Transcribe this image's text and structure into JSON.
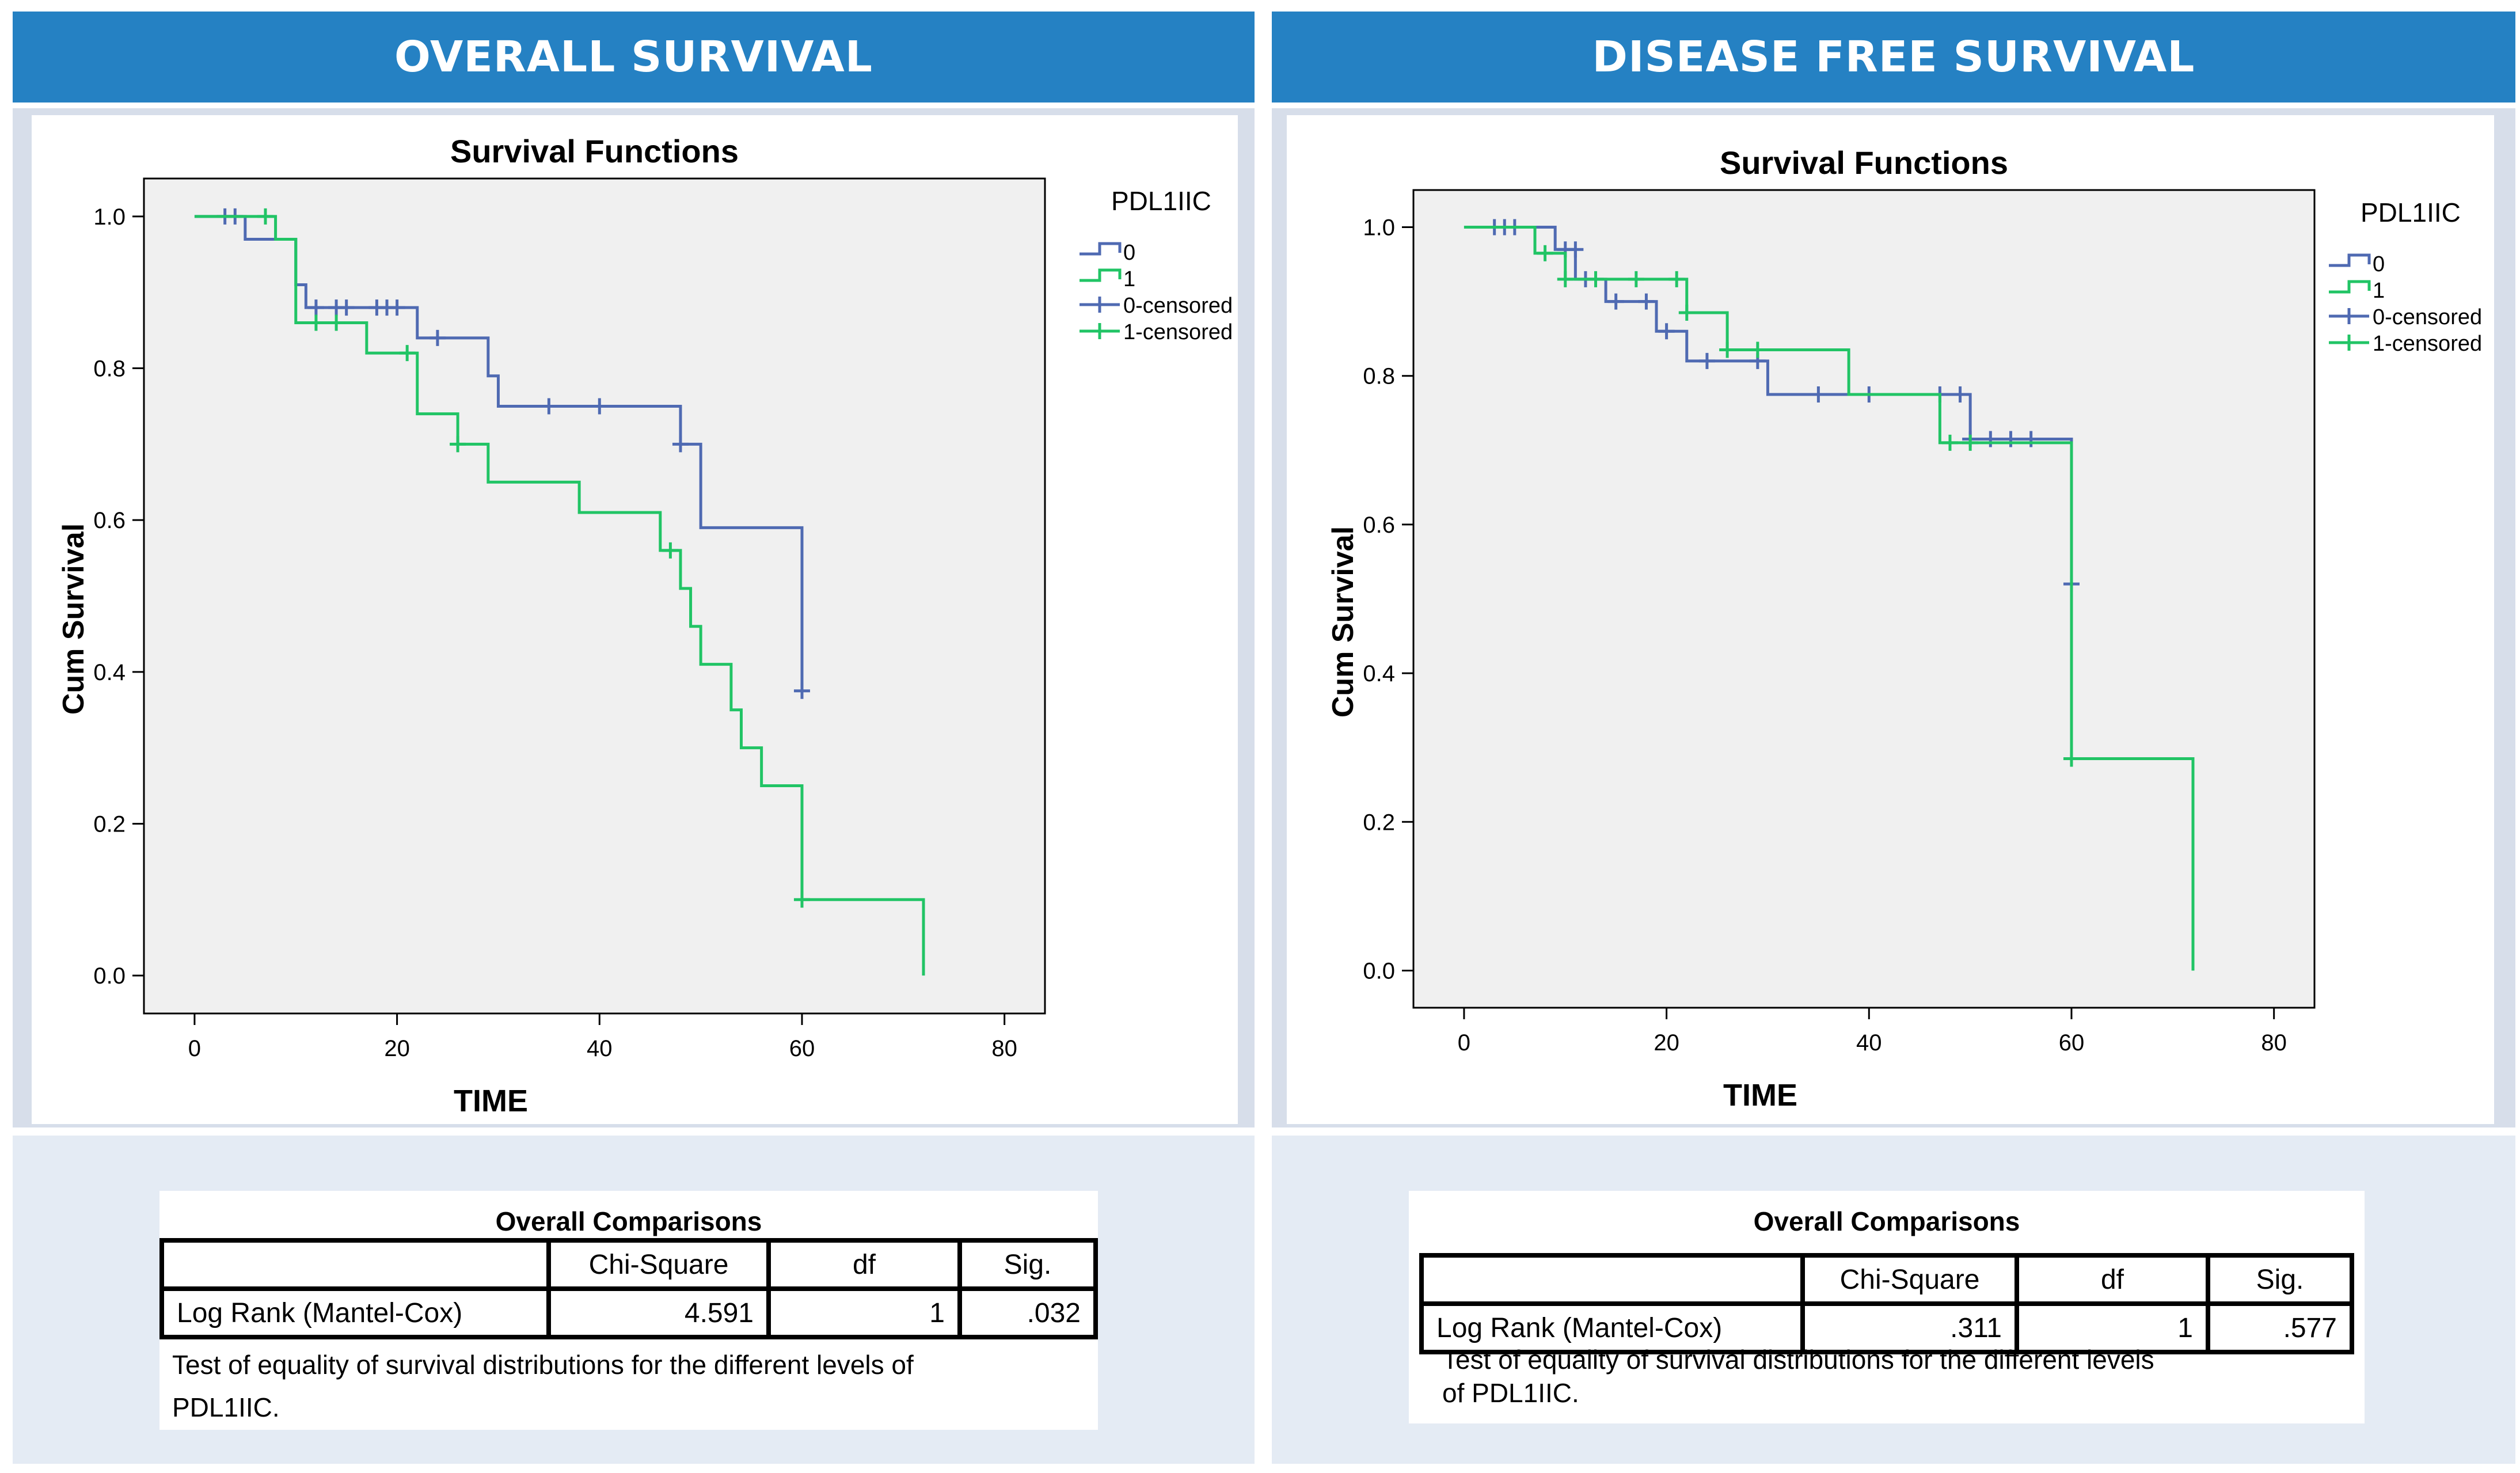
{
  "panels": [
    {
      "header": "OVERALL SURVIVAL",
      "stats": {
        "title": "Overall Comparisons",
        "columns": [
          "",
          "Chi-Square",
          "df",
          "Sig."
        ],
        "row": {
          "label": "Log Rank (Mantel-Cox)",
          "chi_square": "4.591",
          "df": "1",
          "sig": ".032"
        },
        "note_line1": "Test of equality of survival distributions for the different levels of",
        "note_line2": "PDL1IIC."
      }
    },
    {
      "header": "DISEASE FREE SURVIVAL",
      "stats": {
        "title": "Overall Comparisons",
        "columns": [
          "",
          "Chi-Square",
          "df",
          "Sig."
        ],
        "row": {
          "label": "Log Rank (Mantel-Cox)",
          "chi_square": ".311",
          "df": "1",
          "sig": ".577"
        },
        "note_line1": "Test of equality of survival distributions for the different levels",
        "note_line2": "of PDL1IIC."
      }
    }
  ],
  "chart_data": [
    {
      "type": "line",
      "title": "Survival Functions",
      "xlabel": "TIME",
      "ylabel": "Cum Survival",
      "xlim": [
        -5,
        84
      ],
      "ylim": [
        -0.05,
        1.05
      ],
      "xticks": [
        0,
        20,
        40,
        60,
        80
      ],
      "yticks": [
        0.0,
        0.2,
        0.4,
        0.6,
        0.8,
        1.0
      ],
      "ytick_labels": [
        "0.0",
        "0.2",
        "0.4",
        "0.6",
        "0.8",
        "1.0"
      ],
      "legend_title": "PDL1IIC",
      "legend": [
        "0",
        "1",
        "0-censored",
        "1-censored"
      ],
      "colors": {
        "group0": "#4f6ab2",
        "group1": "#21c465"
      },
      "series": [
        {
          "name": "0",
          "steps": [
            [
              0,
              1.0
            ],
            [
              5,
              0.97
            ],
            [
              10,
              0.91
            ],
            [
              11,
              0.88
            ],
            [
              22,
              0.84
            ],
            [
              29,
              0.79
            ],
            [
              30,
              0.75
            ],
            [
              48,
              0.7
            ],
            [
              50,
              0.59
            ],
            [
              60,
              0.38
            ]
          ],
          "end": 60,
          "censored": [
            [
              3,
              1.0
            ],
            [
              4,
              1.0
            ],
            [
              12,
              0.88
            ],
            [
              14,
              0.88
            ],
            [
              15,
              0.88
            ],
            [
              18,
              0.88
            ],
            [
              19,
              0.88
            ],
            [
              20,
              0.88
            ],
            [
              24,
              0.84
            ],
            [
              35,
              0.75
            ],
            [
              40,
              0.75
            ],
            [
              48,
              0.7
            ],
            [
              60,
              0.375
            ]
          ]
        },
        {
          "name": "1",
          "steps": [
            [
              0,
              1.0
            ],
            [
              8,
              0.97
            ],
            [
              10,
              0.86
            ],
            [
              17,
              0.82
            ],
            [
              22,
              0.74
            ],
            [
              26,
              0.7
            ],
            [
              29,
              0.65
            ],
            [
              38,
              0.61
            ],
            [
              46,
              0.56
            ],
            [
              48,
              0.51
            ],
            [
              49,
              0.46
            ],
            [
              50,
              0.41
            ],
            [
              53,
              0.35
            ],
            [
              54,
              0.3
            ],
            [
              56,
              0.25
            ],
            [
              60,
              0.1
            ],
            [
              72,
              0.0
            ]
          ],
          "end": 72,
          "censored": [
            [
              7,
              1.0
            ],
            [
              12,
              0.86
            ],
            [
              14,
              0.86
            ],
            [
              21,
              0.82
            ],
            [
              26,
              0.7
            ],
            [
              47,
              0.56
            ],
            [
              60,
              0.1
            ]
          ]
        }
      ]
    },
    {
      "type": "line",
      "title": "Survival Functions",
      "xlabel": "TIME",
      "ylabel": "Cum Survival",
      "xlim": [
        -5,
        84
      ],
      "ylim": [
        -0.05,
        1.05
      ],
      "xticks": [
        0,
        20,
        40,
        60,
        80
      ],
      "yticks": [
        0.0,
        0.2,
        0.4,
        0.6,
        0.8,
        1.0
      ],
      "ytick_labels": [
        "0.0",
        "0.2",
        "0.4",
        "0.6",
        "0.8",
        "1.0"
      ],
      "legend_title": "PDL1IIC",
      "legend": [
        "0",
        "1",
        "0-censored",
        "1-censored"
      ],
      "colors": {
        "group0": "#4f6ab2",
        "group1": "#21c465"
      },
      "series": [
        {
          "name": "0",
          "steps": [
            [
              0,
              1.0
            ],
            [
              9,
              0.97
            ],
            [
              11,
              0.93
            ],
            [
              14,
              0.9
            ],
            [
              19,
              0.86
            ],
            [
              22,
              0.82
            ],
            [
              30,
              0.775
            ],
            [
              50,
              0.715
            ],
            [
              60,
              0.52
            ]
          ],
          "end": 60,
          "censored": [
            [
              3,
              1.0
            ],
            [
              4,
              1.0
            ],
            [
              5,
              1.0
            ],
            [
              10,
              0.97
            ],
            [
              11,
              0.97
            ],
            [
              12,
              0.93
            ],
            [
              15,
              0.9
            ],
            [
              18,
              0.9
            ],
            [
              20,
              0.86
            ],
            [
              24,
              0.82
            ],
            [
              29,
              0.82
            ],
            [
              35,
              0.775
            ],
            [
              40,
              0.775
            ],
            [
              47,
              0.775
            ],
            [
              49,
              0.775
            ],
            [
              50,
              0.715
            ],
            [
              52,
              0.715
            ],
            [
              54,
              0.715
            ],
            [
              56,
              0.715
            ],
            [
              60,
              0.52
            ]
          ]
        },
        {
          "name": "1",
          "steps": [
            [
              0,
              1.0
            ],
            [
              7,
              0.965
            ],
            [
              10,
              0.93
            ],
            [
              22,
              0.885
            ],
            [
              26,
              0.835
            ],
            [
              38,
              0.775
            ],
            [
              47,
              0.71
            ],
            [
              60,
              0.285
            ],
            [
              72,
              0.0
            ]
          ],
          "end": 72,
          "censored": [
            [
              8,
              0.965
            ],
            [
              10,
              0.93
            ],
            [
              13,
              0.93
            ],
            [
              17,
              0.93
            ],
            [
              21,
              0.93
            ],
            [
              22,
              0.885
            ],
            [
              26,
              0.835
            ],
            [
              29,
              0.835
            ],
            [
              48,
              0.71
            ],
            [
              50,
              0.71
            ],
            [
              60,
              0.285
            ]
          ]
        }
      ]
    }
  ]
}
